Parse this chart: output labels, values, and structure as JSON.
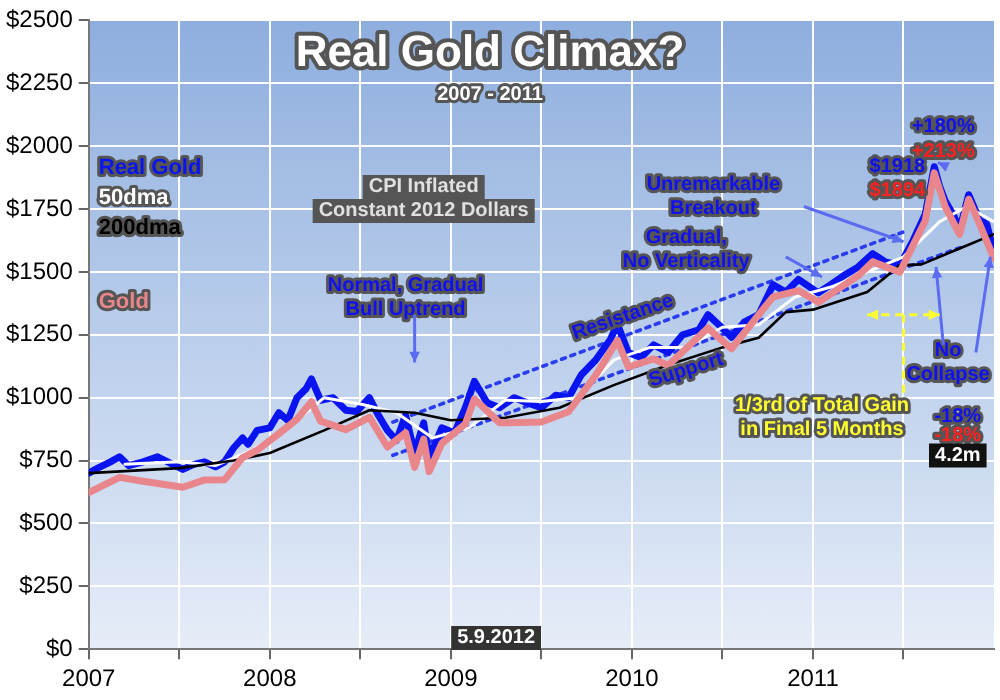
{
  "chart_data": {
    "type": "line",
    "title": "Real Gold Climax?",
    "subtitle": "2007 - 2011",
    "xlim": [
      2007,
      2012
    ],
    "xticks": [
      2007,
      {
        "value": 2007.5,
        "label": null
      },
      2008,
      {
        "value": 2008.5,
        "label": null
      },
      2009,
      {
        "value": 2009.5,
        "label": null
      },
      2010,
      {
        "value": 2010.5,
        "label": null
      },
      2011,
      {
        "value": 2011.5,
        "label": null
      }
    ],
    "ylim": [
      0,
      2500
    ],
    "yticks": [
      {
        "value": 0,
        "label": "$0"
      },
      {
        "value": 250,
        "label": "$250"
      },
      {
        "value": 500,
        "label": "$500"
      },
      {
        "value": 750,
        "label": "$750"
      },
      {
        "value": 1000,
        "label": "$1000"
      },
      {
        "value": 1250,
        "label": "$1250"
      },
      {
        "value": 1500,
        "label": "$1500"
      },
      {
        "value": 1750,
        "label": "$1750"
      },
      {
        "value": 2000,
        "label": "$2000"
      },
      {
        "value": 2250,
        "label": "$2250"
      },
      {
        "value": 2500,
        "label": "$2500"
      }
    ],
    "grid": true,
    "legend": "top left",
    "marker": "none",
    "line_style": "solid",
    "series": [
      {
        "name": "Gold",
        "color": "#e8868c",
        "x": [
          2007.0,
          2007.17,
          2007.3,
          2007.52,
          2007.64,
          2007.75,
          2007.85,
          2007.93,
          2008.05,
          2008.15,
          2008.23,
          2008.28,
          2008.42,
          2008.55,
          2008.65,
          2008.75,
          2008.8,
          2008.85,
          2008.88,
          2008.95,
          2009.08,
          2009.13,
          2009.27,
          2009.5,
          2009.65,
          2009.8,
          2009.92,
          2009.98,
          2010.12,
          2010.2,
          2010.42,
          2010.55,
          2010.78,
          2010.92,
          2011.03,
          2011.25,
          2011.33,
          2011.48,
          2011.62,
          2011.67,
          2011.73,
          2011.81,
          2011.86,
          2011.92,
          2012.0
        ],
        "values": [
          623,
          683,
          668,
          644,
          673,
          674,
          762,
          791,
          857,
          914,
          984,
          907,
          873,
          922,
          804,
          861,
          723,
          835,
          706,
          818,
          896,
          995,
          900,
          903,
          944,
          1089,
          1228,
          1122,
          1154,
          1128,
          1277,
          1194,
          1401,
          1426,
          1379,
          1485,
          1540,
          1499,
          1703,
          1894,
          1760,
          1649,
          1789,
          1691,
          1553
        ]
      },
      {
        "name": "200dma",
        "color": "#000000",
        "x": [
          2007.0,
          2007.5,
          2007.8,
          2008.0,
          2008.3,
          2008.55,
          2008.8,
          2009.0,
          2009.3,
          2009.6,
          2009.9,
          2010.2,
          2010.5,
          2010.7,
          2010.85,
          2011.0,
          2011.3,
          2011.48,
          2011.6,
          2011.8,
          2012.0
        ],
        "values": [
          700,
          720,
          750,
          780,
          870,
          950,
          940,
          910,
          920,
          960,
          1050,
          1130,
          1200,
          1238,
          1340,
          1350,
          1420,
          1526,
          1530,
          1590,
          1650
        ]
      },
      {
        "name": "50dma",
        "color": "#ffffff",
        "x": [
          2007.2,
          2007.5,
          2007.7,
          2007.9,
          2008.1,
          2008.3,
          2008.5,
          2008.7,
          2008.9,
          2009.1,
          2009.3,
          2009.5,
          2009.7,
          2009.9,
          2010.1,
          2010.3,
          2010.5,
          2010.7,
          2010.9,
          2011.1,
          2011.3,
          2011.5,
          2011.7,
          2011.85,
          2012.0
        ],
        "values": [
          735,
          745,
          730,
          790,
          880,
          1000,
          975,
          940,
          840,
          880,
          990,
          985,
          1000,
          1150,
          1200,
          1200,
          1280,
          1290,
          1400,
          1440,
          1500,
          1560,
          1700,
          1760,
          1700
        ]
      },
      {
        "name": "Real Gold",
        "color": "#0a14f0",
        "x": [
          2007.0,
          2007.05,
          2007.12,
          2007.17,
          2007.22,
          2007.3,
          2007.38,
          2007.45,
          2007.52,
          2007.58,
          2007.64,
          2007.7,
          2007.75,
          2007.8,
          2007.85,
          2007.88,
          2007.93,
          2008.0,
          2008.05,
          2008.1,
          2008.15,
          2008.2,
          2008.23,
          2008.28,
          2008.35,
          2008.42,
          2008.48,
          2008.55,
          2008.6,
          2008.65,
          2008.7,
          2008.75,
          2008.8,
          2008.85,
          2008.88,
          2008.95,
          2009.02,
          2009.08,
          2009.13,
          2009.2,
          2009.27,
          2009.35,
          2009.42,
          2009.5,
          2009.58,
          2009.65,
          2009.72,
          2009.8,
          2009.88,
          2009.92,
          2009.98,
          2010.05,
          2010.12,
          2010.2,
          2010.28,
          2010.37,
          2010.42,
          2010.48,
          2010.55,
          2010.62,
          2010.7,
          2010.78,
          2010.85,
          2010.92,
          2011.03,
          2011.1,
          2011.18,
          2011.25,
          2011.33,
          2011.4,
          2011.48,
          2011.55,
          2011.62,
          2011.67,
          2011.7,
          2011.73,
          2011.78,
          2011.81,
          2011.86,
          2011.9,
          2011.92,
          2011.96,
          2012.0
        ],
        "values": [
          700,
          720,
          745,
          765,
          730,
          745,
          765,
          740,
          715,
          735,
          745,
          725,
          745,
          800,
          840,
          815,
          870,
          880,
          940,
          910,
          1000,
          1035,
          1075,
          990,
          1000,
          950,
          945,
          1000,
          930,
          870,
          830,
          930,
          780,
          900,
          760,
          880,
          860,
          960,
          1065,
          980,
          960,
          1000,
          980,
          960,
          1010,
          1000,
          1090,
          1150,
          1230,
          1293,
          1180,
          1160,
          1210,
          1180,
          1250,
          1270,
          1330,
          1290,
          1240,
          1300,
          1330,
          1449,
          1420,
          1470,
          1417,
          1450,
          1490,
          1520,
          1573,
          1540,
          1526,
          1620,
          1729,
          1918,
          1840,
          1783,
          1720,
          1667,
          1807,
          1740,
          1706,
          1690,
          1575
        ]
      },
      {
        "color": "#2a3cf0",
        "line_style": "dotted",
        "x": [
          2008.68,
          2011.5
        ],
        "values": [
          903,
          1659
        ]
      },
      {
        "color": "#2a3cf0",
        "line_style": "dotted",
        "x": [
          2008.68,
          2011.84
        ],
        "values": [
          771,
          1604
        ]
      }
    ],
    "annotations": [
      "CPI Inflated\nConstant 2012 Dollars",
      "Normal, Gradual\nBull Uptrend",
      "Resistance",
      "Support",
      "Gradual,\nNo Verticality",
      "Unremarkable\nBreakout",
      "$1918",
      "$1894",
      "+180%",
      "+213%",
      "1/3rd of Total Gain\nin Final 5 Months",
      {
        "text": "No\nCollapse",
        "x": 2011.68,
        "y": 1520
      },
      "-18%",
      "-18%",
      "4.2m",
      "5.9.2012"
    ]
  }
}
